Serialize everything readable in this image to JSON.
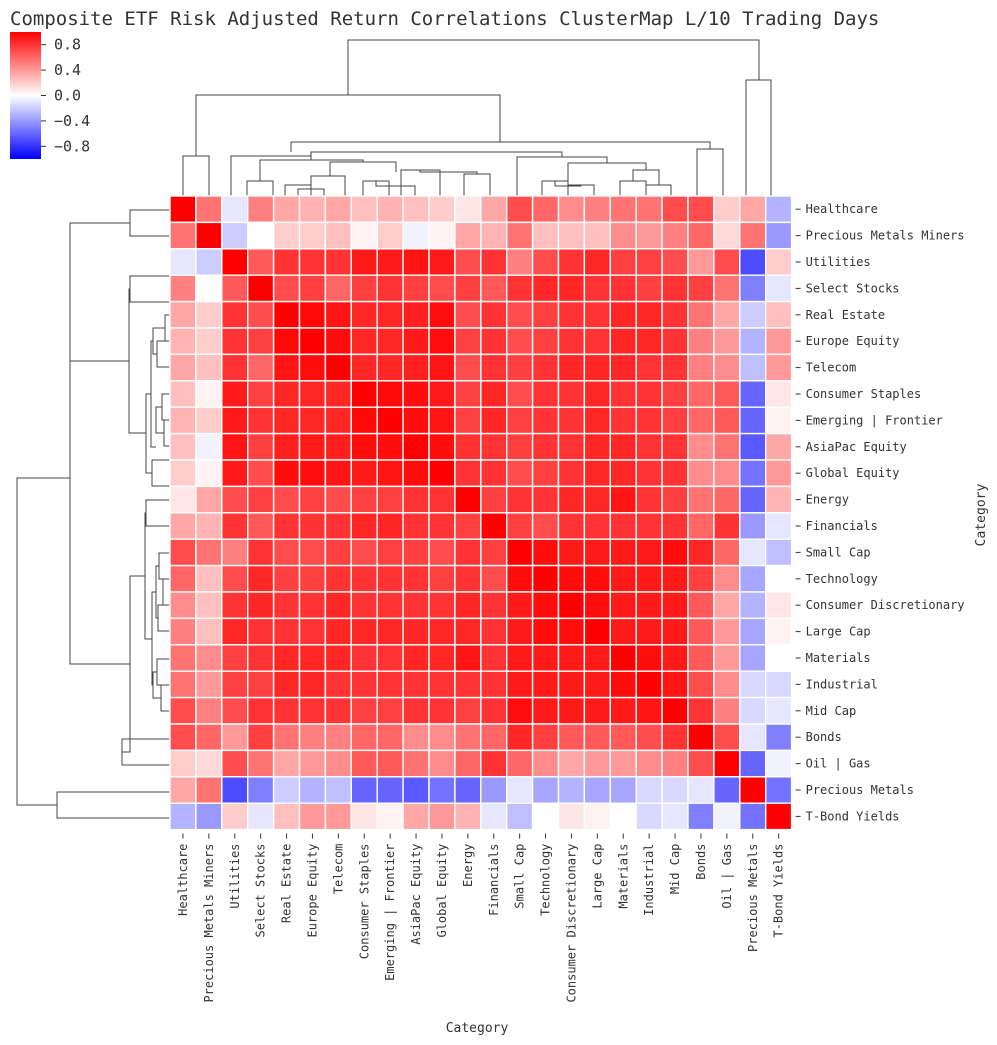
{
  "chart_data": {
    "type": "heatmap",
    "title": "Composite ETF Risk Adjusted Return Correlations ClusterMap L/10 Trading Days",
    "xlabel": "Category",
    "ylabel": "Category",
    "labels": [
      "Healthcare",
      "Precious Metals Miners",
      "Utilities",
      "Select Stocks",
      "Real Estate",
      "Europe Equity",
      "Telecom",
      "Consumer Staples",
      "Emerging | Frontier",
      "AsiaPac Equity",
      "Global Equity",
      "Energy",
      "Financials",
      "Small Cap",
      "Technology",
      "Consumer Discretionary",
      "Large Cap",
      "Materials",
      "Industrial",
      "Mid Cap",
      "Bonds",
      "Oil | Gas",
      "Precious Metals",
      "T-Bond Yields"
    ],
    "colorbar": {
      "cmap": "bwr",
      "vmin": -1.0,
      "vmax": 1.0,
      "ticks": [
        0.8,
        0.4,
        0.0,
        -0.4,
        -0.8
      ],
      "tick_labels": [
        "0.8",
        "0.4",
        "0.0",
        "−0.4",
        "−0.8"
      ]
    },
    "matrix": [
      [
        1.0,
        0.55,
        -0.1,
        0.5,
        0.35,
        0.3,
        0.35,
        0.25,
        0.3,
        0.25,
        0.2,
        0.1,
        0.35,
        0.7,
        0.6,
        0.45,
        0.5,
        0.55,
        0.55,
        0.7,
        0.7,
        0.2,
        0.35,
        -0.3
      ],
      [
        0.55,
        1.0,
        -0.2,
        0.0,
        0.2,
        0.2,
        0.25,
        0.05,
        0.2,
        -0.05,
        0.05,
        0.35,
        0.3,
        0.55,
        0.25,
        0.25,
        0.25,
        0.45,
        0.4,
        0.5,
        0.6,
        0.15,
        0.55,
        -0.4
      ],
      [
        -0.1,
        -0.2,
        1.0,
        0.65,
        0.8,
        0.8,
        0.8,
        0.9,
        0.9,
        0.92,
        0.9,
        0.7,
        0.8,
        0.5,
        0.7,
        0.8,
        0.85,
        0.75,
        0.75,
        0.7,
        0.4,
        0.7,
        -0.7,
        0.2
      ],
      [
        0.5,
        0.0,
        0.65,
        1.0,
        0.7,
        0.75,
        0.6,
        0.75,
        0.8,
        0.75,
        0.7,
        0.75,
        0.65,
        0.8,
        0.85,
        0.85,
        0.8,
        0.8,
        0.75,
        0.8,
        0.75,
        0.55,
        -0.5,
        -0.1
      ],
      [
        0.35,
        0.2,
        0.8,
        0.7,
        1.0,
        0.97,
        0.92,
        0.85,
        0.85,
        0.88,
        0.95,
        0.7,
        0.8,
        0.7,
        0.75,
        0.8,
        0.8,
        0.85,
        0.85,
        0.8,
        0.55,
        0.35,
        -0.2,
        0.25
      ],
      [
        0.3,
        0.2,
        0.8,
        0.75,
        0.97,
        1.0,
        0.95,
        0.85,
        0.85,
        0.9,
        0.95,
        0.75,
        0.8,
        0.7,
        0.75,
        0.8,
        0.8,
        0.85,
        0.85,
        0.8,
        0.5,
        0.4,
        -0.3,
        0.4
      ],
      [
        0.35,
        0.25,
        0.8,
        0.6,
        0.92,
        0.95,
        1.0,
        0.85,
        0.85,
        0.88,
        0.92,
        0.7,
        0.8,
        0.75,
        0.8,
        0.85,
        0.85,
        0.85,
        0.8,
        0.8,
        0.5,
        0.45,
        -0.25,
        0.4
      ],
      [
        0.25,
        0.05,
        0.9,
        0.75,
        0.85,
        0.85,
        0.85,
        1.0,
        0.97,
        0.95,
        0.9,
        0.75,
        0.85,
        0.7,
        0.8,
        0.8,
        0.85,
        0.8,
        0.8,
        0.75,
        0.6,
        0.65,
        -0.6,
        0.1
      ],
      [
        0.3,
        0.2,
        0.9,
        0.8,
        0.85,
        0.85,
        0.85,
        0.97,
        1.0,
        0.95,
        0.92,
        0.75,
        0.85,
        0.75,
        0.8,
        0.8,
        0.85,
        0.8,
        0.8,
        0.75,
        0.6,
        0.65,
        -0.6,
        0.05
      ],
      [
        0.25,
        -0.05,
        0.92,
        0.75,
        0.88,
        0.9,
        0.88,
        0.95,
        0.95,
        1.0,
        0.95,
        0.8,
        0.8,
        0.75,
        0.8,
        0.8,
        0.85,
        0.85,
        0.8,
        0.8,
        0.45,
        0.55,
        -0.65,
        0.35
      ],
      [
        0.2,
        0.05,
        0.9,
        0.7,
        0.95,
        0.95,
        0.92,
        0.9,
        0.92,
        0.95,
        1.0,
        0.8,
        0.8,
        0.7,
        0.75,
        0.8,
        0.85,
        0.85,
        0.8,
        0.8,
        0.45,
        0.45,
        -0.55,
        0.4
      ],
      [
        0.1,
        0.35,
        0.7,
        0.75,
        0.7,
        0.75,
        0.7,
        0.75,
        0.75,
        0.8,
        0.8,
        1.0,
        0.75,
        0.8,
        0.8,
        0.85,
        0.85,
        0.92,
        0.8,
        0.75,
        0.55,
        0.6,
        -0.6,
        0.3
      ],
      [
        0.35,
        0.3,
        0.8,
        0.65,
        0.8,
        0.8,
        0.8,
        0.85,
        0.85,
        0.8,
        0.8,
        0.75,
        1.0,
        0.75,
        0.7,
        0.8,
        0.8,
        0.8,
        0.8,
        0.8,
        0.6,
        0.8,
        -0.4,
        -0.1
      ],
      [
        0.7,
        0.55,
        0.5,
        0.8,
        0.7,
        0.7,
        0.75,
        0.7,
        0.75,
        0.75,
        0.7,
        0.8,
        0.75,
        1.0,
        0.95,
        0.9,
        0.9,
        0.9,
        0.9,
        0.95,
        0.85,
        0.6,
        -0.1,
        -0.25
      ],
      [
        0.6,
        0.25,
        0.7,
        0.85,
        0.75,
        0.75,
        0.8,
        0.8,
        0.8,
        0.8,
        0.75,
        0.8,
        0.7,
        0.95,
        1.0,
        0.95,
        0.95,
        0.9,
        0.9,
        0.9,
        0.75,
        0.45,
        -0.35,
        0.0
      ],
      [
        0.45,
        0.25,
        0.8,
        0.85,
        0.8,
        0.8,
        0.85,
        0.8,
        0.8,
        0.8,
        0.8,
        0.85,
        0.8,
        0.9,
        0.95,
        1.0,
        0.95,
        0.9,
        0.9,
        0.9,
        0.65,
        0.35,
        -0.3,
        0.1
      ],
      [
        0.5,
        0.25,
        0.85,
        0.8,
        0.8,
        0.8,
        0.85,
        0.85,
        0.85,
        0.85,
        0.85,
        0.85,
        0.8,
        0.9,
        0.95,
        0.95,
        1.0,
        0.9,
        0.9,
        0.9,
        0.65,
        0.4,
        -0.35,
        0.05
      ],
      [
        0.55,
        0.45,
        0.75,
        0.8,
        0.85,
        0.85,
        0.85,
        0.8,
        0.8,
        0.85,
        0.85,
        0.92,
        0.8,
        0.9,
        0.9,
        0.9,
        0.9,
        1.0,
        0.95,
        0.9,
        0.65,
        0.4,
        -0.35,
        0.0
      ],
      [
        0.55,
        0.4,
        0.75,
        0.75,
        0.85,
        0.85,
        0.8,
        0.8,
        0.8,
        0.8,
        0.8,
        0.8,
        0.8,
        0.9,
        0.9,
        0.9,
        0.9,
        0.95,
        1.0,
        0.92,
        0.7,
        0.45,
        -0.15,
        -0.15
      ],
      [
        0.7,
        0.5,
        0.7,
        0.8,
        0.8,
        0.8,
        0.8,
        0.75,
        0.75,
        0.8,
        0.8,
        0.75,
        0.8,
        0.95,
        0.9,
        0.9,
        0.9,
        0.9,
        0.92,
        1.0,
        0.8,
        0.5,
        -0.15,
        -0.1
      ],
      [
        0.7,
        0.6,
        0.4,
        0.75,
        0.55,
        0.5,
        0.5,
        0.6,
        0.6,
        0.45,
        0.45,
        0.55,
        0.6,
        0.85,
        0.75,
        0.65,
        0.65,
        0.65,
        0.7,
        0.8,
        1.0,
        0.7,
        -0.1,
        -0.5
      ],
      [
        0.2,
        0.15,
        0.7,
        0.55,
        0.35,
        0.4,
        0.45,
        0.65,
        0.65,
        0.55,
        0.45,
        0.6,
        0.8,
        0.6,
        0.45,
        0.35,
        0.4,
        0.4,
        0.45,
        0.5,
        0.7,
        1.0,
        -0.6,
        -0.05
      ],
      [
        0.35,
        0.55,
        -0.7,
        -0.5,
        -0.2,
        -0.3,
        -0.25,
        -0.6,
        -0.6,
        -0.65,
        -0.55,
        -0.6,
        -0.4,
        -0.1,
        -0.35,
        -0.3,
        -0.35,
        -0.35,
        -0.15,
        -0.15,
        -0.1,
        -0.6,
        1.0,
        -0.55
      ],
      [
        -0.3,
        -0.4,
        0.2,
        -0.1,
        0.25,
        0.4,
        0.4,
        0.1,
        0.05,
        0.35,
        0.4,
        0.3,
        -0.1,
        -0.25,
        0.0,
        0.1,
        0.05,
        0.0,
        -0.15,
        -0.1,
        -0.5,
        -0.05,
        -0.55,
        1.0
      ]
    ]
  }
}
